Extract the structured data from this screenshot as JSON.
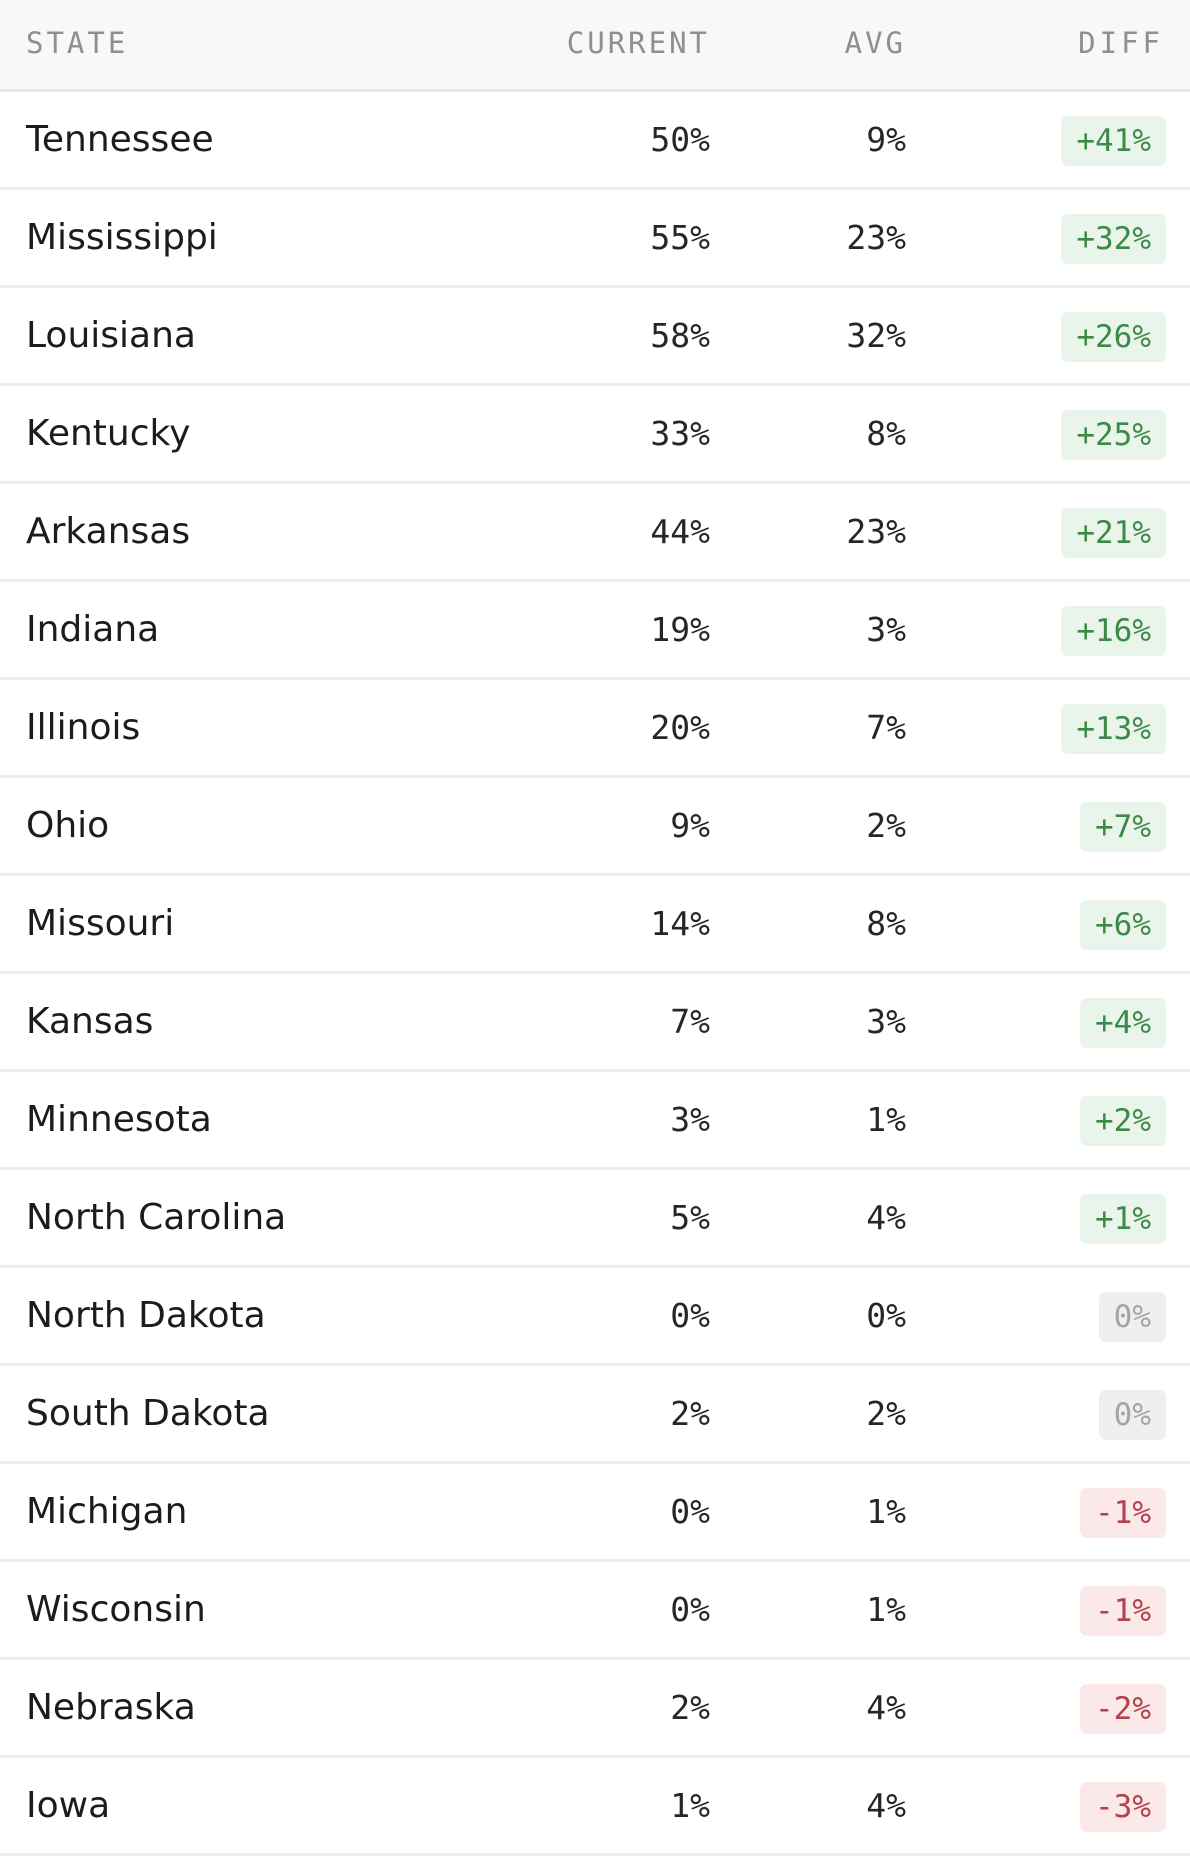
{
  "table": {
    "headers": {
      "state": "STATE",
      "current": "CURRENT",
      "avg": "AVG",
      "diff": "DIFF"
    },
    "colors": {
      "positive_text": "#3d8a48",
      "positive_bg": "#e9f5ea",
      "zero_text": "#a4a4a4",
      "zero_bg": "#efefed",
      "negative_text": "#b0424a",
      "negative_bg": "#fbe8e8"
    },
    "rows": [
      {
        "state": "Tennessee",
        "current": "50%",
        "avg": "9%",
        "diff": "+41%",
        "sign": "pos"
      },
      {
        "state": "Mississippi",
        "current": "55%",
        "avg": "23%",
        "diff": "+32%",
        "sign": "pos"
      },
      {
        "state": "Louisiana",
        "current": "58%",
        "avg": "32%",
        "diff": "+26%",
        "sign": "pos"
      },
      {
        "state": "Kentucky",
        "current": "33%",
        "avg": "8%",
        "diff": "+25%",
        "sign": "pos"
      },
      {
        "state": "Arkansas",
        "current": "44%",
        "avg": "23%",
        "diff": "+21%",
        "sign": "pos"
      },
      {
        "state": "Indiana",
        "current": "19%",
        "avg": "3%",
        "diff": "+16%",
        "sign": "pos"
      },
      {
        "state": "Illinois",
        "current": "20%",
        "avg": "7%",
        "diff": "+13%",
        "sign": "pos"
      },
      {
        "state": "Ohio",
        "current": "9%",
        "avg": "2%",
        "diff": "+7%",
        "sign": "pos"
      },
      {
        "state": "Missouri",
        "current": "14%",
        "avg": "8%",
        "diff": "+6%",
        "sign": "pos"
      },
      {
        "state": "Kansas",
        "current": "7%",
        "avg": "3%",
        "diff": "+4%",
        "sign": "pos"
      },
      {
        "state": "Minnesota",
        "current": "3%",
        "avg": "1%",
        "diff": "+2%",
        "sign": "pos"
      },
      {
        "state": "North Carolina",
        "current": "5%",
        "avg": "4%",
        "diff": "+1%",
        "sign": "pos"
      },
      {
        "state": "North Dakota",
        "current": "0%",
        "avg": "0%",
        "diff": "0%",
        "sign": "zero"
      },
      {
        "state": "South Dakota",
        "current": "2%",
        "avg": "2%",
        "diff": "0%",
        "sign": "zero"
      },
      {
        "state": "Michigan",
        "current": "0%",
        "avg": "1%",
        "diff": "-1%",
        "sign": "neg"
      },
      {
        "state": "Wisconsin",
        "current": "0%",
        "avg": "1%",
        "diff": "-1%",
        "sign": "neg"
      },
      {
        "state": "Nebraska",
        "current": "2%",
        "avg": "4%",
        "diff": "-2%",
        "sign": "neg"
      },
      {
        "state": "Iowa",
        "current": "1%",
        "avg": "4%",
        "diff": "-3%",
        "sign": "neg"
      }
    ]
  }
}
